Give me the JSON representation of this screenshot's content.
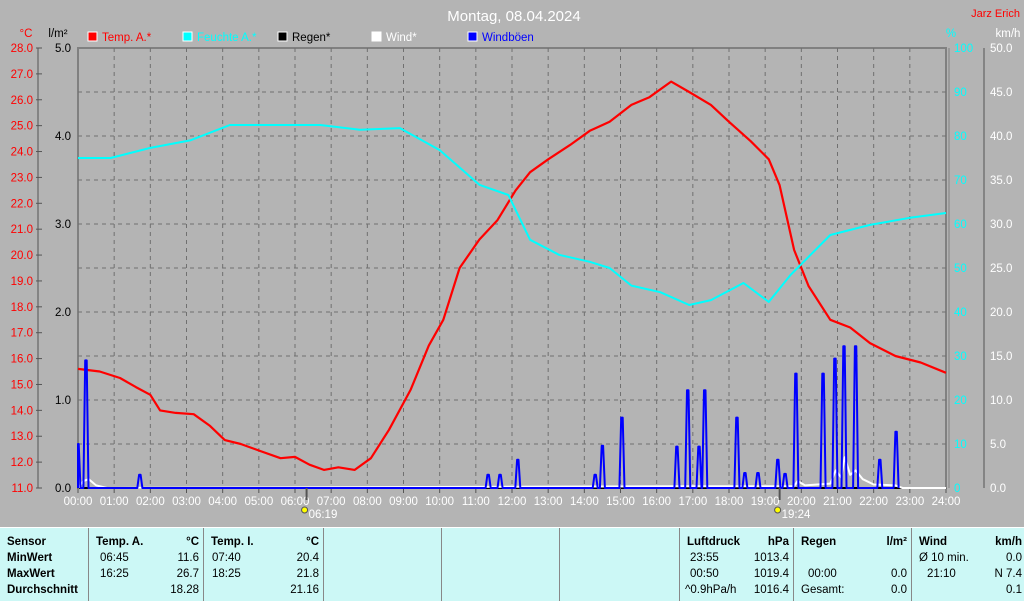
{
  "title": "Montag, 08.04.2024",
  "author": "Jarz Erich",
  "colors": {
    "temp": "#ff0000",
    "humidity": "#00ffff",
    "rain": "#000000",
    "wind": "#ffffff",
    "gust": "#0000ff",
    "bg": "#b4b4b4",
    "panel": "#ccf8f6"
  },
  "chart_data": {
    "type": "line",
    "title": "Montag, 08.04.2024",
    "x_range_hours": [
      0,
      24
    ],
    "x_ticks": [
      "00:00",
      "01:00",
      "02:00",
      "03:00",
      "04:00",
      "05:00",
      "06:00",
      "07:00",
      "08:00",
      "09:00",
      "10:00",
      "11:00",
      "12:00",
      "13:00",
      "14:00",
      "15:00",
      "16:00",
      "17:00",
      "18:00",
      "19:00",
      "20:00",
      "21:00",
      "22:00",
      "23:00",
      "24:00"
    ],
    "axes": {
      "temp": {
        "unit": "°C",
        "range": [
          11,
          28
        ],
        "ticks": [
          "28.0",
          "27.0",
          "26.0",
          "25.0",
          "24.0",
          "23.0",
          "22.0",
          "21.0",
          "20.0",
          "19.0",
          "18.0",
          "17.0",
          "16.0",
          "15.0",
          "14.0",
          "13.0",
          "12.0",
          "11.0"
        ]
      },
      "rain": {
        "unit": "l/m²",
        "range": [
          0,
          5
        ],
        "ticks": [
          "5.0",
          "4.0",
          "3.0",
          "2.0",
          "1.0",
          "0.0"
        ]
      },
      "humidity": {
        "unit": "%",
        "range": [
          0,
          100
        ],
        "ticks": [
          "100",
          "90",
          "80",
          "70",
          "60",
          "50",
          "40",
          "30",
          "20",
          "10",
          "0"
        ]
      },
      "wind": {
        "unit": "km/h",
        "range": [
          0,
          50
        ],
        "ticks": [
          "50.0",
          "45.0",
          "40.0",
          "35.0",
          "30.0",
          "25.0",
          "20.0",
          "15.0",
          "10.0",
          "5.0",
          "0.0"
        ]
      }
    },
    "grid": true,
    "legend": [
      {
        "label": "Temp. A.*",
        "color": "#ff0000"
      },
      {
        "label": "Feuchte A.*",
        "color": "#00ffff"
      },
      {
        "label": "Regen*",
        "color": "#000000"
      },
      {
        "label": "Wind*",
        "color": "#ffffff"
      },
      {
        "label": "Windböen",
        "color": "#0000ff"
      }
    ],
    "legend_position": "top",
    "series": [
      {
        "name": "Temp. A.*",
        "axis": "temp",
        "points": [
          [
            0,
            15.6
          ],
          [
            0.6,
            15.5
          ],
          [
            1.16,
            15.25
          ],
          [
            1.6,
            14.9
          ],
          [
            2,
            14.6
          ],
          [
            2.27,
            14.0
          ],
          [
            2.7,
            13.9
          ],
          [
            3.2,
            13.85
          ],
          [
            3.65,
            13.4
          ],
          [
            4.06,
            12.85
          ],
          [
            4.5,
            12.7
          ],
          [
            5,
            12.45
          ],
          [
            5.6,
            12.15
          ],
          [
            6,
            12.2
          ],
          [
            6.4,
            11.9
          ],
          [
            6.8,
            11.7
          ],
          [
            7.2,
            11.8
          ],
          [
            7.65,
            11.7
          ],
          [
            8.1,
            12.15
          ],
          [
            8.6,
            13.25
          ],
          [
            9.2,
            14.8
          ],
          [
            9.7,
            16.5
          ],
          [
            10.1,
            17.5
          ],
          [
            10.55,
            19.5
          ],
          [
            11.1,
            20.6
          ],
          [
            11.6,
            21.35
          ],
          [
            12.1,
            22.5
          ],
          [
            12.5,
            23.2
          ],
          [
            13,
            23.7
          ],
          [
            13.6,
            24.25
          ],
          [
            14.15,
            24.8
          ],
          [
            14.7,
            25.15
          ],
          [
            15.3,
            25.8
          ],
          [
            15.8,
            26.1
          ],
          [
            16.4,
            26.7
          ],
          [
            16.9,
            26.3
          ],
          [
            17.5,
            25.8
          ],
          [
            18,
            25.15
          ],
          [
            18.6,
            24.4
          ],
          [
            19.1,
            23.7
          ],
          [
            19.4,
            22.7
          ],
          [
            19.8,
            20.2
          ],
          [
            20.2,
            18.8
          ],
          [
            20.8,
            17.5
          ],
          [
            21.35,
            17.2
          ],
          [
            21.9,
            16.6
          ],
          [
            22.6,
            16.1
          ],
          [
            23.3,
            15.85
          ],
          [
            24,
            15.45
          ]
        ]
      },
      {
        "name": "Feuchte A.*",
        "axis": "humidity",
        "points": [
          [
            0,
            75
          ],
          [
            0.9,
            75
          ],
          [
            2,
            77.3
          ],
          [
            3.1,
            79
          ],
          [
            4.2,
            82.5
          ],
          [
            5.3,
            82.5
          ],
          [
            6.7,
            82.5
          ],
          [
            7.8,
            81.4
          ],
          [
            8.9,
            81.8
          ],
          [
            10,
            76.8
          ],
          [
            11.1,
            68.9
          ],
          [
            11.9,
            66.6
          ],
          [
            12.5,
            56.4
          ],
          [
            13.3,
            53
          ],
          [
            14.15,
            51.4
          ],
          [
            14.7,
            50
          ],
          [
            15.3,
            46
          ],
          [
            16.1,
            44.5
          ],
          [
            16.9,
            41.6
          ],
          [
            17.5,
            42.7
          ],
          [
            18.4,
            46.6
          ],
          [
            19.1,
            42.3
          ],
          [
            19.7,
            48.4
          ],
          [
            20.8,
            57.5
          ],
          [
            21.9,
            59.8
          ],
          [
            23,
            61.4
          ],
          [
            24,
            62.5
          ]
        ]
      },
      {
        "name": "Regen*",
        "axis": "rain",
        "points": [
          [
            0,
            0
          ],
          [
            24,
            0
          ]
        ]
      },
      {
        "name": "Wind*",
        "axis": "wind",
        "points": [
          [
            0,
            0
          ],
          [
            0.15,
            0.8
          ],
          [
            0.3,
            1.0
          ],
          [
            0.5,
            0.3
          ],
          [
            0.8,
            0
          ],
          [
            16.5,
            0.2
          ],
          [
            19.8,
            0.2
          ],
          [
            19.9,
            0.8
          ],
          [
            20.1,
            0.3
          ],
          [
            20.8,
            0.5
          ],
          [
            20.95,
            2
          ],
          [
            21.1,
            1.2
          ],
          [
            21.2,
            3.5
          ],
          [
            21.35,
            1.5
          ],
          [
            21.5,
            2
          ],
          [
            21.7,
            1
          ],
          [
            22,
            0.4
          ],
          [
            22.6,
            0.3
          ],
          [
            22.8,
            0
          ],
          [
            24,
            0
          ]
        ]
      },
      {
        "name": "Windböen",
        "axis": "wind",
        "spikes": [
          [
            0,
            5
          ],
          [
            0.22,
            14.5
          ],
          [
            1.71,
            1.5
          ],
          [
            11.34,
            1.5
          ],
          [
            11.67,
            1.5
          ],
          [
            12.16,
            3.2
          ],
          [
            14.3,
            1.5
          ],
          [
            14.5,
            4.8
          ],
          [
            15.04,
            8
          ],
          [
            16.56,
            4.7
          ],
          [
            16.86,
            11.1
          ],
          [
            17.17,
            4.7
          ],
          [
            17.33,
            11.1
          ],
          [
            18.22,
            8
          ],
          [
            18.44,
            1.7
          ],
          [
            18.8,
            1.7
          ],
          [
            19.35,
            3.2
          ],
          [
            19.55,
            1.6
          ],
          [
            19.85,
            13
          ],
          [
            20.6,
            13
          ],
          [
            20.93,
            14.7
          ],
          [
            21.18,
            16.1
          ],
          [
            21.5,
            16.1
          ],
          [
            22.17,
            3.2
          ],
          [
            22.62,
            6.4
          ]
        ]
      }
    ],
    "annotations": [
      {
        "label": "06:19",
        "hour": 6.32,
        "icon": "sunrise"
      },
      {
        "label": "19:24",
        "hour": 19.4,
        "icon": "sunset"
      }
    ]
  },
  "table": {
    "sensor": {
      "header": "Sensor",
      "rows": [
        "MinWert",
        "MaxWert",
        "Durchschnitt"
      ]
    },
    "temp_a": {
      "header": "Temp. A.",
      "unit": "°C",
      "min_time": "06:45",
      "min": "11.6",
      "max_time": "16:25",
      "max": "26.7",
      "avg": "18.28"
    },
    "temp_i": {
      "header": "Temp. I.",
      "unit": "°C",
      "min_time": "07:40",
      "min": "20.4",
      "max_time": "18:25",
      "max": "21.8",
      "avg": "21.16"
    },
    "pressure": {
      "header": "Luftdruck",
      "unit": "hPa",
      "min_time": "23:55",
      "min": "1013.4",
      "max_time": "00:50",
      "max": "1019.4",
      "trend": "^0.9hPa/h",
      "avg": "1016.4"
    },
    "rain": {
      "header": "Regen",
      "unit": "l/m²",
      "time": "00:00",
      "value": "0.0",
      "total_label": "Gesamt:",
      "total": "0.0"
    },
    "wind": {
      "header": "Wind",
      "unit": "km/h",
      "avg_label": "Ø 10 min.",
      "avg": "0.0",
      "max_time": "21:10",
      "max": "N 7.4",
      "mean": "0.1"
    }
  }
}
